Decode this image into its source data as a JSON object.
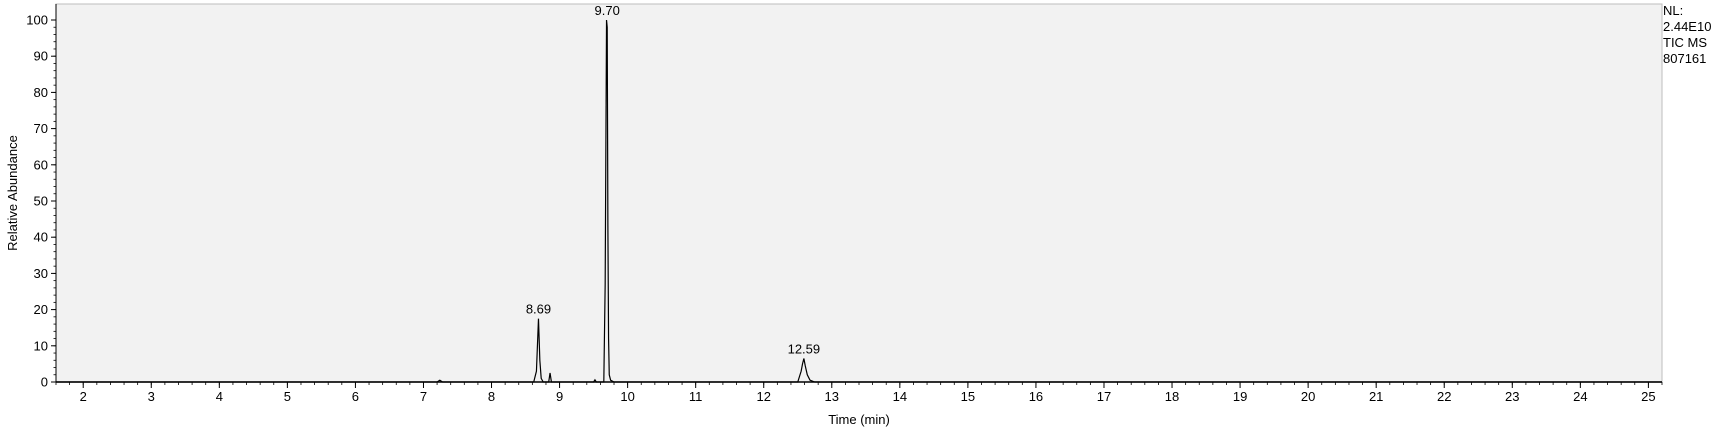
{
  "chart_data": {
    "type": "line",
    "xlabel": "Time (min)",
    "ylabel": "Relative Abundance",
    "xlim": [
      1.6,
      25.2
    ],
    "ylim": [
      0,
      100
    ],
    "x_ticks": [
      2,
      3,
      4,
      5,
      6,
      7,
      8,
      9,
      10,
      11,
      12,
      13,
      14,
      15,
      16,
      17,
      18,
      19,
      20,
      21,
      22,
      23,
      24,
      25
    ],
    "y_ticks": [
      0,
      10,
      20,
      30,
      40,
      50,
      60,
      70,
      80,
      90,
      100
    ],
    "grid": false,
    "series": [
      {
        "x": [
          1.6,
          7.2,
          7.24,
          7.28,
          8.62,
          8.66,
          8.69,
          8.71,
          8.73,
          8.76,
          8.84,
          8.86,
          8.88,
          9.5,
          9.52,
          9.54,
          9.65,
          9.67,
          9.69,
          9.7,
          9.71,
          9.72,
          9.73,
          9.75,
          9.8,
          12.5,
          12.55,
          12.57,
          12.59,
          12.61,
          12.64,
          12.68,
          12.75,
          25.2
        ],
        "y": [
          0,
          0,
          0.5,
          0,
          0,
          3,
          17.5,
          6,
          1,
          0,
          0,
          2.5,
          0,
          0,
          0.6,
          0,
          0,
          27,
          100,
          98,
          43,
          12,
          2,
          0.5,
          0,
          0,
          3,
          5,
          6.5,
          4.5,
          2,
          0.5,
          0,
          0
        ]
      }
    ],
    "peak_labels": [
      {
        "x": 8.69,
        "y": 17.5,
        "label": "8.69"
      },
      {
        "x": 9.7,
        "y": 100,
        "label": "9.70"
      },
      {
        "x": 12.59,
        "y": 6.5,
        "label": "12.59"
      }
    ]
  },
  "info": {
    "nl_label": "NL:",
    "nl_value": "2.44E10",
    "trace": "TIC  MS",
    "sample": "807161"
  },
  "colors": {
    "plot_bg": "#f2f2f2",
    "trace": "#000000",
    "axis": "#000000"
  }
}
